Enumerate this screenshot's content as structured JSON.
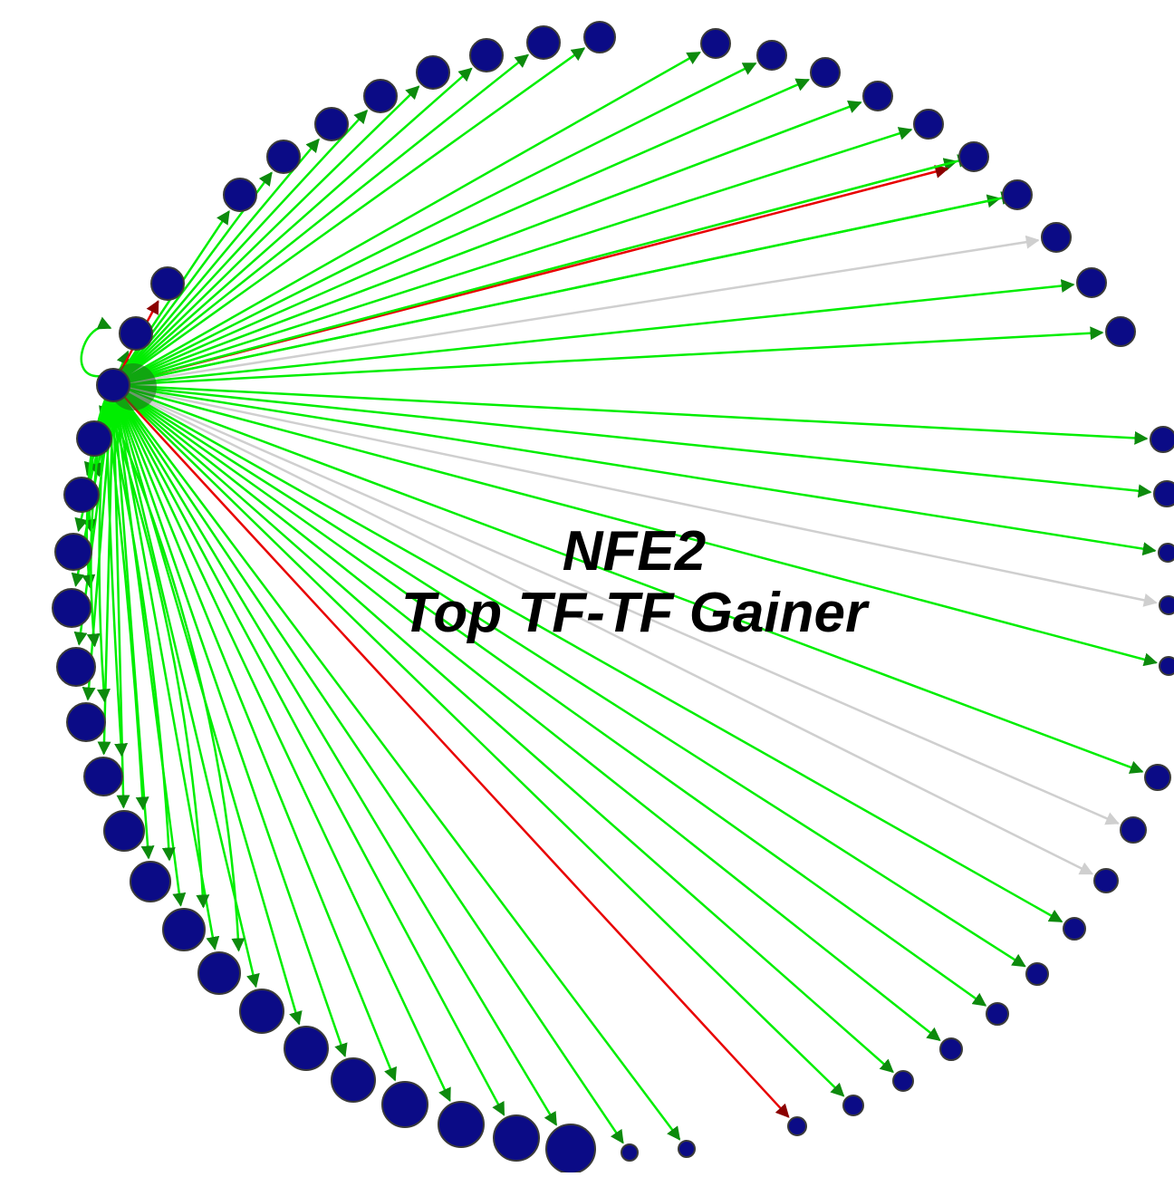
{
  "title": {
    "line1": "NFE2",
    "line2": "Top TF-TF Gainer"
  },
  "colors": {
    "node_fill": "#0b0b86",
    "node_stroke": "#3a3a3a",
    "edge_gain": "#00ee00",
    "edge_gain_arrow": "#0d8a0d",
    "edge_loss": "#e80000",
    "edge_loss_arrow": "#8b0000",
    "edge_neutral": "#cfcfcf"
  },
  "network": {
    "hub_node": "hub",
    "node_count": 60,
    "edges": [
      {
        "target": "n01",
        "type": "gain"
      },
      {
        "target": "n02",
        "type": "loss"
      },
      {
        "target": "n03",
        "type": "gain"
      },
      {
        "target": "n04",
        "type": "gain"
      },
      {
        "target": "n05",
        "type": "gain"
      },
      {
        "target": "n06",
        "type": "gain"
      },
      {
        "target": "n07",
        "type": "gain"
      },
      {
        "target": "n08",
        "type": "gain"
      },
      {
        "target": "n09",
        "type": "gain"
      },
      {
        "target": "n10",
        "type": "gain"
      },
      {
        "target": "n11",
        "type": "gain"
      },
      {
        "target": "n12",
        "type": "gain"
      },
      {
        "target": "n13",
        "type": "gain"
      },
      {
        "target": "n14",
        "type": "gain"
      },
      {
        "target": "n15",
        "type": "gain"
      },
      {
        "target": "n16",
        "type": "gain"
      },
      {
        "target": "n17",
        "type": "gain"
      },
      {
        "target": "n18",
        "type": "loss"
      },
      {
        "target": "n19",
        "type": "gain"
      },
      {
        "target": "n20",
        "type": "neutral"
      },
      {
        "target": "n21",
        "type": "gain"
      },
      {
        "target": "n22",
        "type": "gain"
      },
      {
        "target": "n23",
        "type": "gain"
      },
      {
        "target": "n24",
        "type": "gain"
      },
      {
        "target": "n25",
        "type": "neutral"
      },
      {
        "target": "n26",
        "type": "gain"
      },
      {
        "target": "n27",
        "type": "gain"
      },
      {
        "target": "n28",
        "type": "neutral"
      },
      {
        "target": "n29",
        "type": "neutral"
      },
      {
        "target": "n30",
        "type": "gain"
      },
      {
        "target": "n31",
        "type": "gain"
      },
      {
        "target": "n32",
        "type": "gain"
      },
      {
        "target": "n33",
        "type": "gain"
      },
      {
        "target": "n34",
        "type": "gain"
      },
      {
        "target": "n35",
        "type": "gain"
      },
      {
        "target": "n36",
        "type": "loss"
      },
      {
        "target": "n37",
        "type": "gain"
      },
      {
        "target": "n38",
        "type": "gain"
      },
      {
        "target": "n39",
        "type": "gain"
      },
      {
        "target": "n40",
        "type": "gain"
      },
      {
        "target": "n41",
        "type": "gain"
      },
      {
        "target": "n42",
        "type": "gain"
      },
      {
        "target": "n43",
        "type": "gain"
      },
      {
        "target": "n44",
        "type": "gain"
      },
      {
        "target": "n45",
        "type": "gain"
      },
      {
        "target": "n46",
        "type": "gain"
      },
      {
        "target": "n47",
        "type": "gain"
      },
      {
        "target": "n48",
        "type": "gain"
      },
      {
        "target": "n49",
        "type": "gain"
      },
      {
        "target": "n50",
        "type": "gain"
      },
      {
        "target": "n51",
        "type": "gain"
      },
      {
        "target": "n52",
        "type": "gain"
      },
      {
        "target": "n53",
        "type": "gain"
      },
      {
        "target": "n54",
        "type": "gain"
      },
      {
        "target": "n55",
        "type": "gain"
      },
      {
        "target": "n56",
        "type": "gain"
      },
      {
        "target": "n57",
        "type": "gain"
      },
      {
        "target": "n58",
        "type": "gain"
      },
      {
        "target": "hub",
        "type": "gain"
      }
    ]
  }
}
